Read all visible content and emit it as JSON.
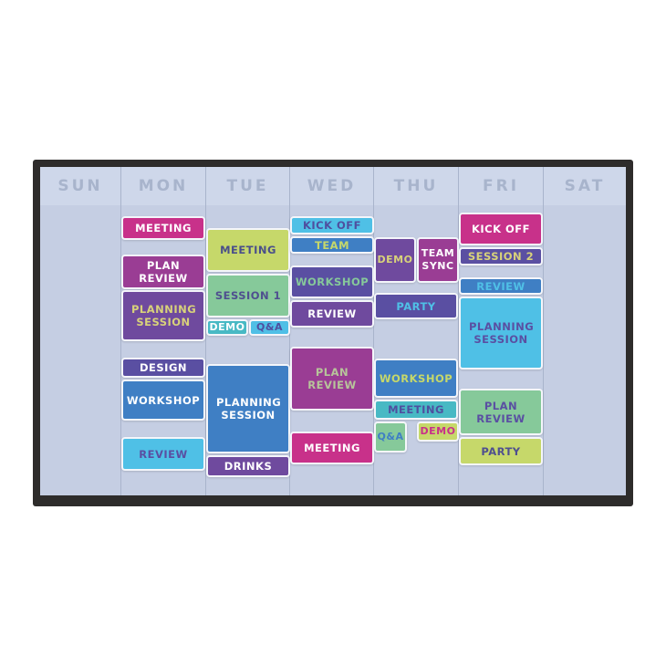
{
  "days": [
    "SUN",
    "MON",
    "TUE",
    "WED",
    "THU",
    "FRI",
    "SAT"
  ],
  "colors": {
    "magenta": "#c8318a",
    "plum": "#9a3d94",
    "purple": "#6f4a9e",
    "indigo": "#5a4fa2",
    "blue": "#3f7fc4",
    "sky": "#4fc0e6",
    "teal": "#48b9c4",
    "mint": "#86c99a",
    "lime": "#c6d86a"
  },
  "events": [
    {
      "day": "MON",
      "label": "MEETING",
      "bg": "#c8318a",
      "fg": "#ffffff"
    },
    {
      "day": "MON",
      "label": "PLAN REVIEW",
      "bg": "#9a3d94",
      "fg": "#ffffff"
    },
    {
      "day": "MON",
      "label": "PLANNING SESSION",
      "bg": "#6f4a9e",
      "fg": "#d8d27a"
    },
    {
      "day": "MON",
      "label": "DESIGN",
      "bg": "#5a4fa2",
      "fg": "#ffffff"
    },
    {
      "day": "MON",
      "label": "WORKSHOP",
      "bg": "#3f7fc4",
      "fg": "#ffffff"
    },
    {
      "day": "MON",
      "label": "REVIEW",
      "bg": "#4fc0e6",
      "fg": "#5a4fa2"
    },
    {
      "day": "TUE",
      "label": "MEETING",
      "bg": "#c6d86a",
      "fg": "#4a4f8a"
    },
    {
      "day": "TUE",
      "label": "SESSION 1",
      "bg": "#86c99a",
      "fg": "#4f4f8f"
    },
    {
      "day": "TUE",
      "label": "DEMO",
      "bg": "#48b9c4",
      "fg": "#ffffff"
    },
    {
      "day": "TUE",
      "label": "Q&A",
      "bg": "#4fbfe6",
      "fg": "#4f4f9f"
    },
    {
      "day": "TUE",
      "label": "PLANNING SESSION",
      "bg": "#3f7fc4",
      "fg": "#ffffff"
    },
    {
      "day": "TUE",
      "label": "DRINKS",
      "bg": "#6f4a9e",
      "fg": "#ffffff"
    },
    {
      "day": "WED",
      "label": "KICK OFF",
      "bg": "#4fc0e6",
      "fg": "#4f4f9f"
    },
    {
      "day": "WED",
      "label": "TEAM",
      "bg": "#3f7fc4",
      "fg": "#c6d86a"
    },
    {
      "day": "WED",
      "label": "WORKSHOP",
      "bg": "#5a4fa2",
      "fg": "#86c99a"
    },
    {
      "day": "WED",
      "label": "REVIEW",
      "bg": "#6f4a9e",
      "fg": "#ffffff"
    },
    {
      "day": "WED",
      "label": "PLAN REVIEW",
      "bg": "#9a3d94",
      "fg": "#b7c49a"
    },
    {
      "day": "WED",
      "label": "MEETING",
      "bg": "#c8318a",
      "fg": "#ffffff"
    },
    {
      "day": "THU",
      "label": "DEMO",
      "bg": "#6f4a9e",
      "fg": "#d8d27a"
    },
    {
      "day": "THU",
      "label": "TEAM SYNC",
      "bg": "#9a3d94",
      "fg": "#ffffff"
    },
    {
      "day": "THU",
      "label": "PARTY",
      "bg": "#5a4fa2",
      "fg": "#4fc0e6"
    },
    {
      "day": "THU",
      "label": "WORKSHOP",
      "bg": "#3f7fc4",
      "fg": "#c6d86a"
    },
    {
      "day": "THU",
      "label": "MEETING",
      "bg": "#48b9c4",
      "fg": "#4f4f9f"
    },
    {
      "day": "THU",
      "label": "Q&A",
      "bg": "#86c99a",
      "fg": "#3f7fc4"
    },
    {
      "day": "THU",
      "label": "DEMO",
      "bg": "#c6d86a",
      "fg": "#c8318a"
    },
    {
      "day": "FRI",
      "label": "KICK OFF",
      "bg": "#c8318a",
      "fg": "#ffffff"
    },
    {
      "day": "FRI",
      "label": "SESSION 2",
      "bg": "#5a4fa2",
      "fg": "#d8d27a"
    },
    {
      "day": "FRI",
      "label": "REVIEW",
      "bg": "#3f7fc4",
      "fg": "#4fc0e6"
    },
    {
      "day": "FRI",
      "label": "PLANNING SESSION",
      "bg": "#4fc0e6",
      "fg": "#5a4fa2"
    },
    {
      "day": "FRI",
      "label": "PLAN REVIEW",
      "bg": "#86c99a",
      "fg": "#5a4fa2"
    },
    {
      "day": "FRI",
      "label": "PARTY",
      "bg": "#c6d86a",
      "fg": "#4f4f8f"
    }
  ]
}
